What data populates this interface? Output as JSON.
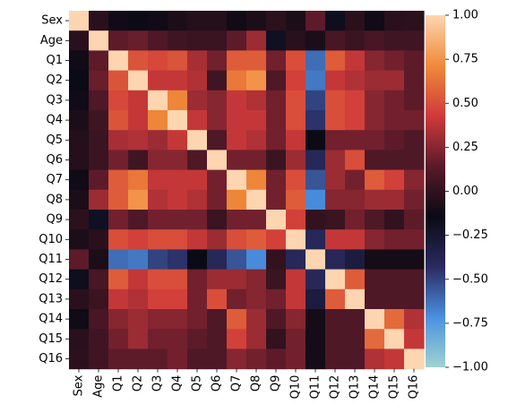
{
  "chart_data": {
    "type": "heatmap",
    "labels": [
      "Sex",
      "Age",
      "Q1",
      "Q2",
      "Q3",
      "Q4",
      "Q5",
      "Q6",
      "Q7",
      "Q8",
      "Q9",
      "Q10",
      "Q11",
      "Q12",
      "Q13",
      "Q14",
      "Q15",
      "Q16"
    ],
    "values": [
      [
        1.0,
        -0.03,
        -0.12,
        -0.15,
        -0.12,
        -0.08,
        -0.05,
        -0.05,
        -0.12,
        -0.08,
        -0.02,
        -0.08,
        0.15,
        -0.18,
        -0.03,
        -0.12,
        -0.03,
        -0.02
      ],
      [
        -0.03,
        1.0,
        0.15,
        0.18,
        0.1,
        0.05,
        0.03,
        0.03,
        0.15,
        0.3,
        -0.2,
        -0.03,
        -0.08,
        0.08,
        0.03,
        0.08,
        0.05,
        0.05
      ],
      [
        -0.12,
        0.15,
        1.0,
        0.52,
        0.48,
        0.52,
        0.33,
        0.2,
        0.55,
        0.55,
        0.2,
        0.5,
        -0.62,
        0.55,
        0.4,
        0.25,
        0.2,
        0.15
      ],
      [
        -0.15,
        0.18,
        0.52,
        1.0,
        0.4,
        0.4,
        0.35,
        0.05,
        0.65,
        0.75,
        0.1,
        0.45,
        -0.65,
        0.4,
        0.35,
        0.3,
        0.3,
        0.15
      ],
      [
        -0.12,
        0.1,
        0.48,
        0.4,
        1.0,
        0.7,
        0.3,
        0.25,
        0.4,
        0.35,
        0.2,
        0.5,
        -0.5,
        0.5,
        0.45,
        0.25,
        0.2,
        0.15
      ],
      [
        -0.08,
        0.05,
        0.52,
        0.4,
        0.7,
        1.0,
        0.4,
        0.25,
        0.4,
        0.4,
        0.2,
        0.5,
        -0.45,
        0.5,
        0.45,
        0.25,
        0.2,
        0.2
      ],
      [
        -0.05,
        0.03,
        0.33,
        0.35,
        0.3,
        0.4,
        1.0,
        0.1,
        0.4,
        0.35,
        0.2,
        0.4,
        -0.15,
        0.2,
        0.2,
        0.2,
        0.15,
        0.1
      ],
      [
        -0.05,
        0.03,
        0.2,
        0.05,
        0.25,
        0.25,
        0.1,
        1.0,
        0.2,
        0.2,
        0.03,
        0.3,
        -0.4,
        0.3,
        0.5,
        0.1,
        0.1,
        0.1
      ],
      [
        -0.12,
        0.15,
        0.55,
        0.65,
        0.4,
        0.4,
        0.4,
        0.2,
        1.0,
        0.7,
        0.2,
        0.5,
        -0.55,
        0.3,
        0.2,
        0.55,
        0.45,
        0.25
      ],
      [
        -0.08,
        0.3,
        0.55,
        0.75,
        0.35,
        0.4,
        0.35,
        0.2,
        0.7,
        1.0,
        0.2,
        0.55,
        -0.7,
        0.25,
        0.25,
        0.3,
        0.3,
        0.2
      ],
      [
        -0.02,
        -0.2,
        0.2,
        0.1,
        0.2,
        0.2,
        0.2,
        0.03,
        0.2,
        0.2,
        1.0,
        0.45,
        0.0,
        0.03,
        0.2,
        0.1,
        0.0,
        0.15
      ],
      [
        -0.08,
        -0.03,
        0.5,
        0.45,
        0.5,
        0.5,
        0.4,
        0.3,
        0.5,
        0.55,
        0.45,
        1.0,
        -0.4,
        0.4,
        0.4,
        0.25,
        0.2,
        0.2
      ],
      [
        0.15,
        -0.08,
        -0.62,
        -0.65,
        -0.5,
        -0.45,
        -0.15,
        -0.4,
        -0.55,
        -0.7,
        0.0,
        -0.4,
        1.0,
        -0.4,
        -0.3,
        -0.1,
        -0.1,
        -0.1
      ],
      [
        -0.18,
        0.08,
        0.55,
        0.4,
        0.5,
        0.5,
        0.2,
        0.3,
        0.3,
        0.25,
        0.03,
        0.4,
        -0.4,
        1.0,
        0.55,
        0.1,
        0.1,
        0.1
      ],
      [
        -0.03,
        0.03,
        0.4,
        0.35,
        0.45,
        0.45,
        0.2,
        0.5,
        0.2,
        0.25,
        0.2,
        0.4,
        -0.3,
        0.55,
        1.0,
        0.1,
        0.1,
        0.1
      ],
      [
        -0.12,
        0.08,
        0.25,
        0.3,
        0.25,
        0.25,
        0.2,
        0.1,
        0.55,
        0.3,
        0.1,
        0.25,
        -0.1,
        0.1,
        0.1,
        1.0,
        0.6,
        0.35
      ],
      [
        -0.03,
        0.05,
        0.2,
        0.3,
        0.2,
        0.2,
        0.15,
        0.1,
        0.45,
        0.3,
        0.0,
        0.2,
        -0.1,
        0.1,
        0.1,
        0.6,
        1.0,
        0.4
      ],
      [
        -0.02,
        0.05,
        0.15,
        0.15,
        0.15,
        0.2,
        0.1,
        0.1,
        0.25,
        0.2,
        0.15,
        0.2,
        -0.1,
        0.1,
        0.1,
        0.35,
        0.4,
        1.0
      ]
    ],
    "vmin": -1.0,
    "vmax": 1.0,
    "colorbar_ticks": [
      "1.00",
      "0.75",
      "0.50",
      "0.25",
      "0.00",
      "−0.25",
      "−0.50",
      "−0.75",
      "−1.00"
    ],
    "colormap": "icefire",
    "colormap_stops": [
      "#a1d3d1",
      "#4a90e0",
      "#2a2a60",
      "#0a0a14",
      "#5a1a2a",
      "#d03a3a",
      "#f08a3a",
      "#fdd5b0"
    ]
  }
}
